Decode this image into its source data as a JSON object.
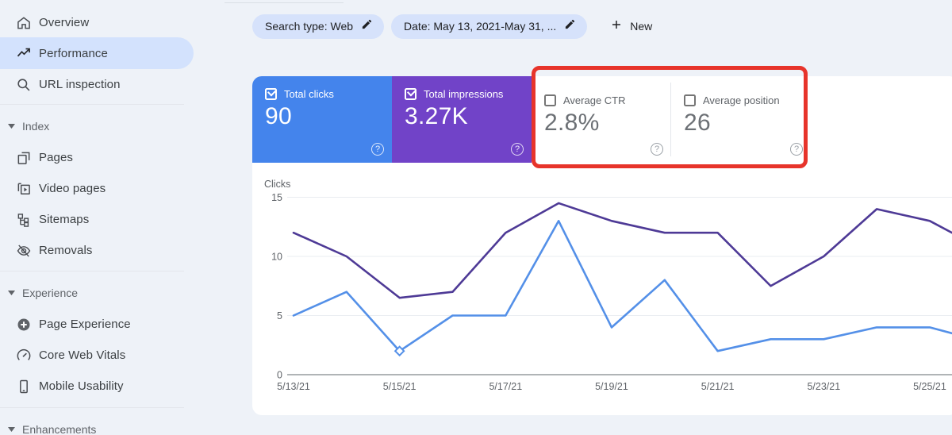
{
  "sidebar": {
    "overview": "Overview",
    "performance": "Performance",
    "url_inspection": "URL inspection",
    "index_header": "Index",
    "pages": "Pages",
    "video_pages": "Video pages",
    "sitemaps": "Sitemaps",
    "removals": "Removals",
    "experience_header": "Experience",
    "page_experience": "Page Experience",
    "core_web_vitals": "Core Web Vitals",
    "mobile_usability": "Mobile Usability",
    "enhancements_header": "Enhancements"
  },
  "toolbar": {
    "search_type_chip": "Search type: Web",
    "date_chip": "Date: May 13, 2021-May 31, ...",
    "new_button": "New"
  },
  "metrics": {
    "total_clicks": {
      "label": "Total clicks",
      "value": "90",
      "checked": true,
      "color": "#4484ec"
    },
    "total_impressions": {
      "label": "Total impressions",
      "value": "3.27K",
      "checked": true,
      "color": "#7143c8"
    },
    "average_ctr": {
      "label": "Average CTR",
      "value": "2.8%",
      "checked": false
    },
    "average_position": {
      "label": "Average position",
      "value": "26",
      "checked": false
    }
  },
  "annotation": {
    "highlight_box_color": "#e7342b",
    "highlights": [
      "Average CTR",
      "Average position"
    ]
  },
  "chart_data": {
    "type": "line",
    "title": "Clicks",
    "ylabel": "Clicks",
    "categories": [
      "5/13/21",
      "5/14/21",
      "5/15/21",
      "5/16/21",
      "5/17/21",
      "5/18/21",
      "5/19/21",
      "5/20/21",
      "5/21/21",
      "5/22/21",
      "5/23/21",
      "5/24/21",
      "5/25/21"
    ],
    "x_tick_step": 2,
    "y_ticks": [
      0,
      5,
      10,
      15
    ],
    "ylim": [
      0,
      15
    ],
    "grid": true,
    "legend": "none",
    "marker": {
      "series": "Total clicks",
      "category": "5/15/21",
      "value": 2
    },
    "series": [
      {
        "name": "Total clicks",
        "color": "#5490e8",
        "values": [
          5,
          7,
          2,
          5,
          5,
          13,
          4,
          8,
          2,
          3,
          3,
          4,
          4
        ],
        "edge_value": 3.5
      },
      {
        "name": "Total impressions (scaled)",
        "color": "#4e3a96",
        "values": [
          12,
          10,
          6.5,
          7,
          12,
          14.5,
          13,
          12,
          12,
          7.5,
          10,
          14,
          13
        ],
        "edge_value": 12
      }
    ]
  }
}
